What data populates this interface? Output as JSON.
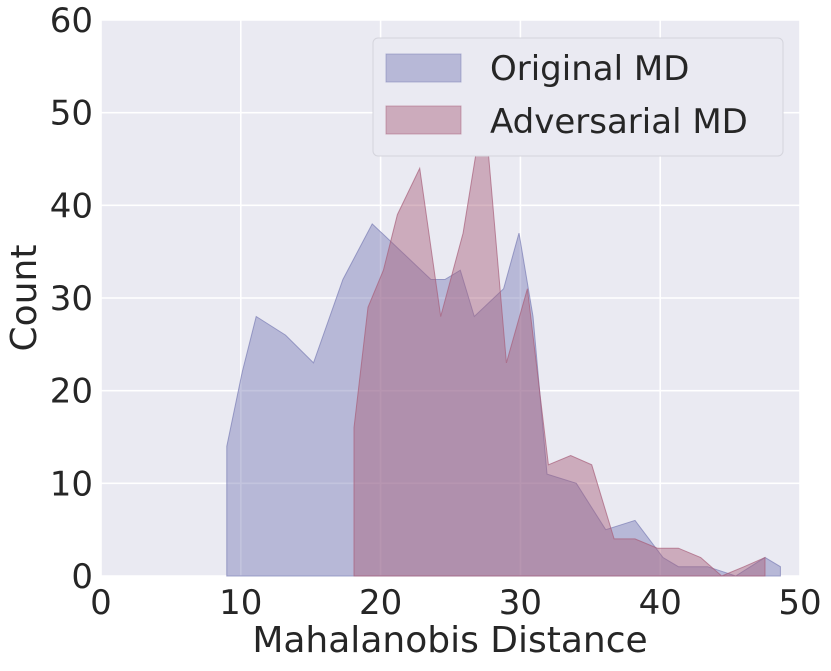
{
  "chart_data": {
    "type": "area",
    "xlabel": "Mahalanobis Distance",
    "ylabel": "Count",
    "xlim": [
      0,
      50
    ],
    "ylim": [
      0,
      60
    ],
    "xticks": [
      0,
      10,
      20,
      30,
      40,
      50
    ],
    "yticks": [
      0,
      10,
      20,
      30,
      40,
      50,
      60
    ],
    "grid": true,
    "legend_position": "top-right",
    "series": [
      {
        "name": "Original MD",
        "color": "#7b7db5",
        "x": [
          9.0,
          10.1,
          11.1,
          13.2,
          15.2,
          17.3,
          19.4,
          21.5,
          23.6,
          24.6,
          25.7,
          26.7,
          28.8,
          29.9,
          30.9,
          31.9,
          34.0,
          36.1,
          38.2,
          40.2,
          41.3,
          43.4,
          45.4,
          47.5,
          48.6
        ],
        "values": [
          14,
          22,
          28,
          26,
          23,
          32,
          38,
          35,
          32,
          32,
          33,
          28,
          31,
          37,
          28,
          11,
          10,
          5,
          6,
          2,
          1,
          1,
          0,
          2,
          1
        ]
      },
      {
        "name": "Adversarial MD",
        "color": "#a8607a",
        "x": [
          18.1,
          19.1,
          20.2,
          21.2,
          22.8,
          24.3,
          25.9,
          27.4,
          29.0,
          30.5,
          32.0,
          33.6,
          35.1,
          36.7,
          38.2,
          39.8,
          41.3,
          42.9,
          44.4,
          46.0,
          47.5
        ],
        "values": [
          16,
          29,
          33,
          39,
          44,
          28,
          37,
          51,
          23,
          31,
          12,
          13,
          12,
          4,
          4,
          3,
          3,
          2,
          0,
          1,
          2
        ]
      }
    ]
  }
}
